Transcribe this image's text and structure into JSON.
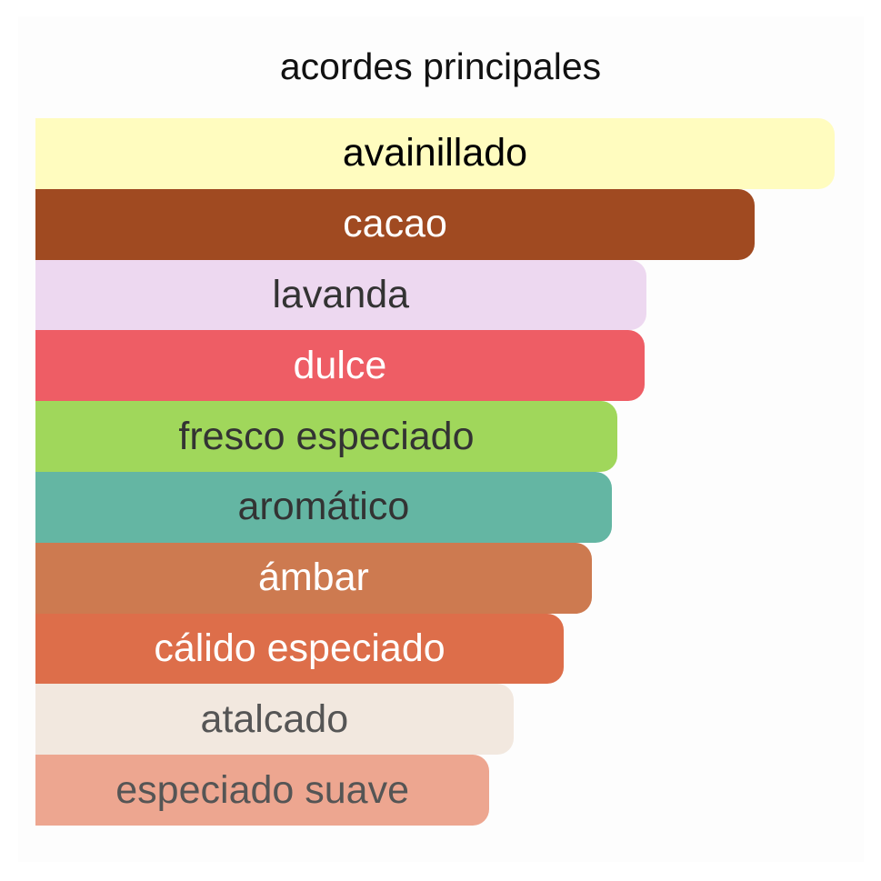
{
  "title": "acordes principales",
  "accords": [
    {
      "label": "avainillado",
      "strength": 100,
      "color": "#FFFCBF",
      "text_color": "#000000"
    },
    {
      "label": "cacao",
      "strength": 90,
      "color": "#A04A21",
      "text_color": "#FFFFFF"
    },
    {
      "label": "lavanda",
      "strength": 76.4,
      "color": "#EDD8F0",
      "text_color": "#333333"
    },
    {
      "label": "dulce",
      "strength": 76.2,
      "color": "#EE5D65",
      "text_color": "#FFFFFF"
    },
    {
      "label": "fresco especiado",
      "strength": 72.8,
      "color": "#A0D75B",
      "text_color": "#333333"
    },
    {
      "label": "aromático",
      "strength": 72.1,
      "color": "#64B6A3",
      "text_color": "#333333"
    },
    {
      "label": "ámbar",
      "strength": 69.6,
      "color": "#CD7A50",
      "text_color": "#FFFFFF"
    },
    {
      "label": "cálido especiado",
      "strength": 66.1,
      "color": "#DD6E4A",
      "text_color": "#FFFFFF"
    },
    {
      "label": "atalcado",
      "strength": 59.8,
      "color": "#F2E8DF",
      "text_color": "#555555"
    },
    {
      "label": "especiado suave",
      "strength": 56.8,
      "color": "#EDA690",
      "text_color": "#555555"
    }
  ]
}
